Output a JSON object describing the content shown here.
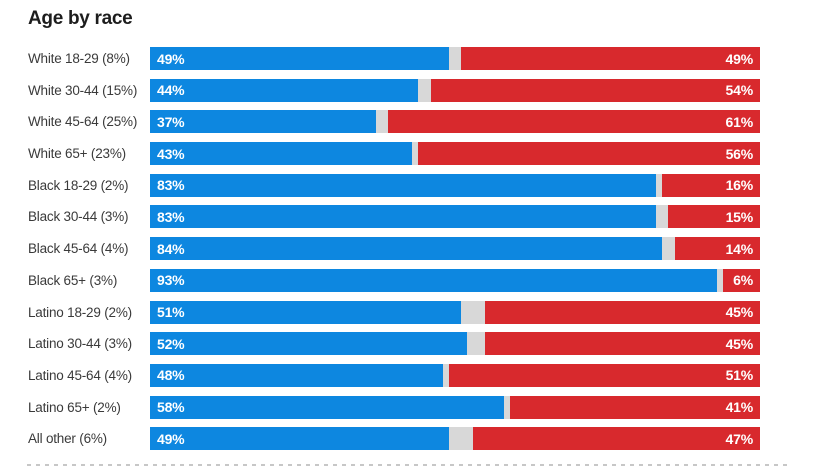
{
  "chart": {
    "title": "Age by race",
    "colors": {
      "blue_segment": "#0d87e0",
      "gray_segment": "#d8d8d8",
      "red_segment": "#d8292d",
      "title_text": "#1d1d1d",
      "label_text": "#3a3a3a",
      "value_text": "#ffffff",
      "divider": "#c7c7c7"
    },
    "rows": [
      {
        "label": "White 18-29 (8%)",
        "blue": 49,
        "red": 49
      },
      {
        "label": "White 30-44 (15%)",
        "blue": 44,
        "red": 54
      },
      {
        "label": "White 45-64 (25%)",
        "blue": 37,
        "red": 61
      },
      {
        "label": "White 65+ (23%)",
        "blue": 43,
        "red": 56
      },
      {
        "label": "Black 18-29 (2%)",
        "blue": 83,
        "red": 16
      },
      {
        "label": "Black 30-44 (3%)",
        "blue": 83,
        "red": 15
      },
      {
        "label": "Black 45-64 (4%)",
        "blue": 84,
        "red": 14
      },
      {
        "label": "Black 65+ (3%)",
        "blue": 93,
        "red": 6
      },
      {
        "label": "Latino 18-29 (2%)",
        "blue": 51,
        "red": 45
      },
      {
        "label": "Latino 30-44 (3%)",
        "blue": 52,
        "red": 45
      },
      {
        "label": "Latino 45-64 (4%)",
        "blue": 48,
        "red": 51
      },
      {
        "label": "Latino 65+ (2%)",
        "blue": 58,
        "red": 41
      },
      {
        "label": "All other (6%)",
        "blue": 49,
        "red": 47
      }
    ]
  },
  "chart_data": {
    "type": "bar",
    "orientation": "horizontal",
    "stacked": true,
    "title": "Age by race",
    "categories": [
      "White 18-29 (8%)",
      "White 30-44 (15%)",
      "White 45-64 (25%)",
      "White 65+ (23%)",
      "Black 18-29 (2%)",
      "Black 30-44 (3%)",
      "Black 45-64 (4%)",
      "Black 65+ (3%)",
      "Latino 18-29 (2%)",
      "Latino 30-44 (3%)",
      "Latino 45-64 (4%)",
      "Latino 65+ (2%)",
      "All other (6%)"
    ],
    "series": [
      {
        "name": "blue",
        "color": "#0d87e0",
        "values": [
          49,
          44,
          37,
          43,
          83,
          83,
          84,
          93,
          51,
          52,
          48,
          58,
          49
        ]
      },
      {
        "name": "gray-remainder",
        "color": "#d8d8d8",
        "values": [
          2,
          2,
          2,
          1,
          1,
          2,
          2,
          1,
          4,
          3,
          1,
          1,
          4
        ]
      },
      {
        "name": "red",
        "color": "#d8292d",
        "values": [
          49,
          54,
          61,
          56,
          16,
          15,
          14,
          6,
          45,
          45,
          51,
          41,
          47
        ]
      }
    ],
    "xlim": [
      0,
      100
    ],
    "grid": false,
    "legend": "none",
    "value_labels": "percent shown in white inside blue (left end) and red (right end) segments"
  }
}
